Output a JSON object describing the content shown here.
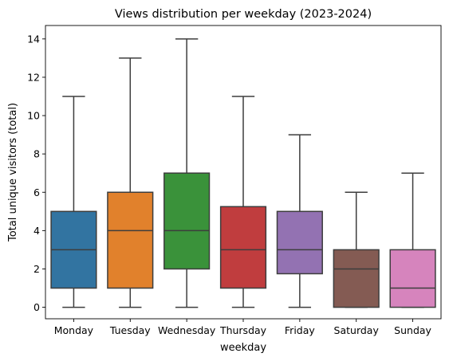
{
  "chart_data": {
    "type": "box",
    "title": "Views distribution per weekday (2023-2024)",
    "xlabel": "weekday",
    "ylabel": "Total unique visitors (total)",
    "ylim": [
      -0.6,
      14.7
    ],
    "yticks": [
      0,
      2,
      4,
      6,
      8,
      10,
      12,
      14
    ],
    "grid": false,
    "legend": "none",
    "categories": [
      "Monday",
      "Tuesday",
      "Wednesday",
      "Thursday",
      "Friday",
      "Saturday",
      "Sunday"
    ],
    "boxes": [
      {
        "category": "Monday",
        "whisker_low": 0,
        "q1": 1,
        "median": 3,
        "q3": 5,
        "whisker_high": 11,
        "color": "#3274a1"
      },
      {
        "category": "Tuesday",
        "whisker_low": 0,
        "q1": 1,
        "median": 4,
        "q3": 6,
        "whisker_high": 13,
        "color": "#e1812c"
      },
      {
        "category": "Wednesday",
        "whisker_low": 0,
        "q1": 2,
        "median": 4,
        "q3": 7,
        "whisker_high": 14,
        "color": "#3a923a"
      },
      {
        "category": "Thursday",
        "whisker_low": 0,
        "q1": 1,
        "median": 3,
        "q3": 5.25,
        "whisker_high": 11,
        "color": "#c03d3e"
      },
      {
        "category": "Friday",
        "whisker_low": 0,
        "q1": 1.75,
        "median": 3,
        "q3": 5,
        "whisker_high": 9,
        "color": "#9372b2"
      },
      {
        "category": "Saturday",
        "whisker_low": 0,
        "q1": 0,
        "median": 2,
        "q3": 3,
        "whisker_high": 6,
        "color": "#845b53"
      },
      {
        "category": "Sunday",
        "whisker_low": 0,
        "q1": 0,
        "median": 1,
        "q3": 3,
        "whisker_high": 7,
        "color": "#d684bd"
      }
    ]
  }
}
